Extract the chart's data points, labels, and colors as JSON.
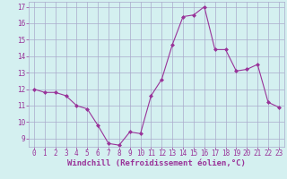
{
  "x": [
    0,
    1,
    2,
    3,
    4,
    5,
    6,
    7,
    8,
    9,
    10,
    11,
    12,
    13,
    14,
    15,
    16,
    17,
    18,
    19,
    20,
    21,
    22,
    23
  ],
  "y": [
    12.0,
    11.8,
    11.8,
    11.6,
    11.0,
    10.8,
    9.8,
    8.7,
    8.6,
    9.4,
    9.3,
    11.6,
    12.6,
    14.7,
    16.4,
    16.5,
    17.0,
    14.4,
    14.4,
    13.1,
    13.2,
    13.5,
    11.2,
    10.9
  ],
  "line_color": "#993399",
  "marker": "D",
  "marker_size": 2,
  "bg_color": "#d4f0f0",
  "grid_color": "#aaaacc",
  "xlabel": "Windchill (Refroidissement éolien,°C)",
  "xlabel_color": "#993399",
  "tick_color": "#993399",
  "ylim": [
    8.5,
    17.3
  ],
  "xlim": [
    -0.5,
    23.5
  ],
  "yticks": [
    9,
    10,
    11,
    12,
    13,
    14,
    15,
    16,
    17
  ],
  "xticks": [
    0,
    1,
    2,
    3,
    4,
    5,
    6,
    7,
    8,
    9,
    10,
    11,
    12,
    13,
    14,
    15,
    16,
    17,
    18,
    19,
    20,
    21,
    22,
    23
  ],
  "tick_fontsize": 5.5,
  "xlabel_fontsize": 6.5
}
